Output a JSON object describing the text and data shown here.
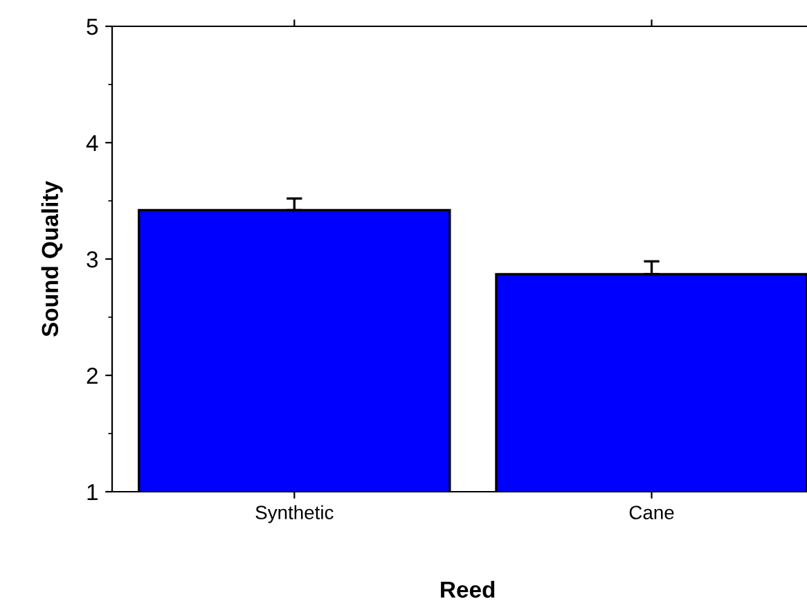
{
  "chart_data": {
    "type": "bar",
    "xlabel": "Reed",
    "ylabel": "Sound Quality",
    "categories": [
      "Synthetic",
      "Cane"
    ],
    "values": [
      3.42,
      2.87
    ],
    "errors": [
      [
        3.42,
        3.52
      ],
      [
        2.87,
        2.98
      ]
    ],
    "color": "#0000ff",
    "ylim": [
      1,
      5
    ],
    "yticks": [
      1,
      2,
      3,
      4,
      5
    ],
    "grid": false,
    "legend": false
  }
}
